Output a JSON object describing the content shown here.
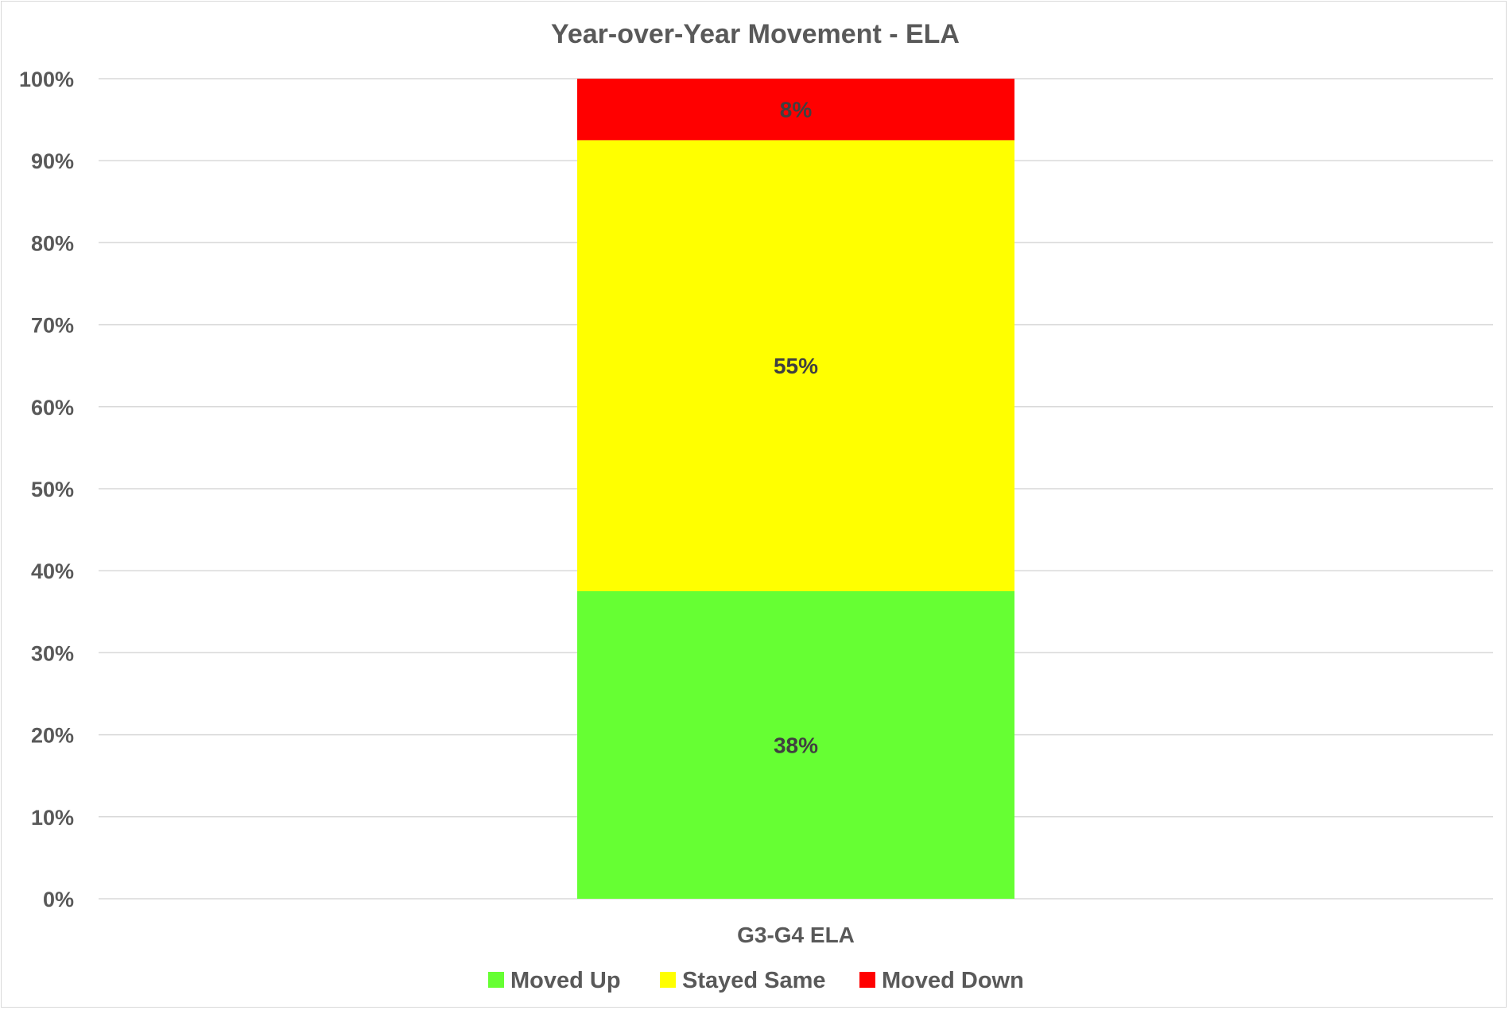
{
  "chart_data": {
    "type": "bar",
    "stacked": true,
    "title": "Year-over-Year Movement - ELA",
    "categories": [
      "G3-G4 ELA"
    ],
    "ylim": [
      0,
      100
    ],
    "y_tick_values": [
      0,
      10,
      20,
      30,
      40,
      50,
      60,
      70,
      80,
      90,
      100
    ],
    "y_tick_labels": [
      "0%",
      "10%",
      "20%",
      "30%",
      "40%",
      "50%",
      "60%",
      "70%",
      "80%",
      "90%",
      "100%"
    ],
    "grid": true,
    "legend_position": "bottom",
    "series": [
      {
        "name": "Moved Up",
        "values": [
          37.5
        ],
        "label": "38%",
        "color": "#66ff33"
      },
      {
        "name": "Stayed Same",
        "values": [
          55
        ],
        "label": "55%",
        "color": "#ffff00"
      },
      {
        "name": "Moved Down",
        "values": [
          7.5
        ],
        "label": "8%",
        "color": "#ff0000"
      }
    ]
  }
}
